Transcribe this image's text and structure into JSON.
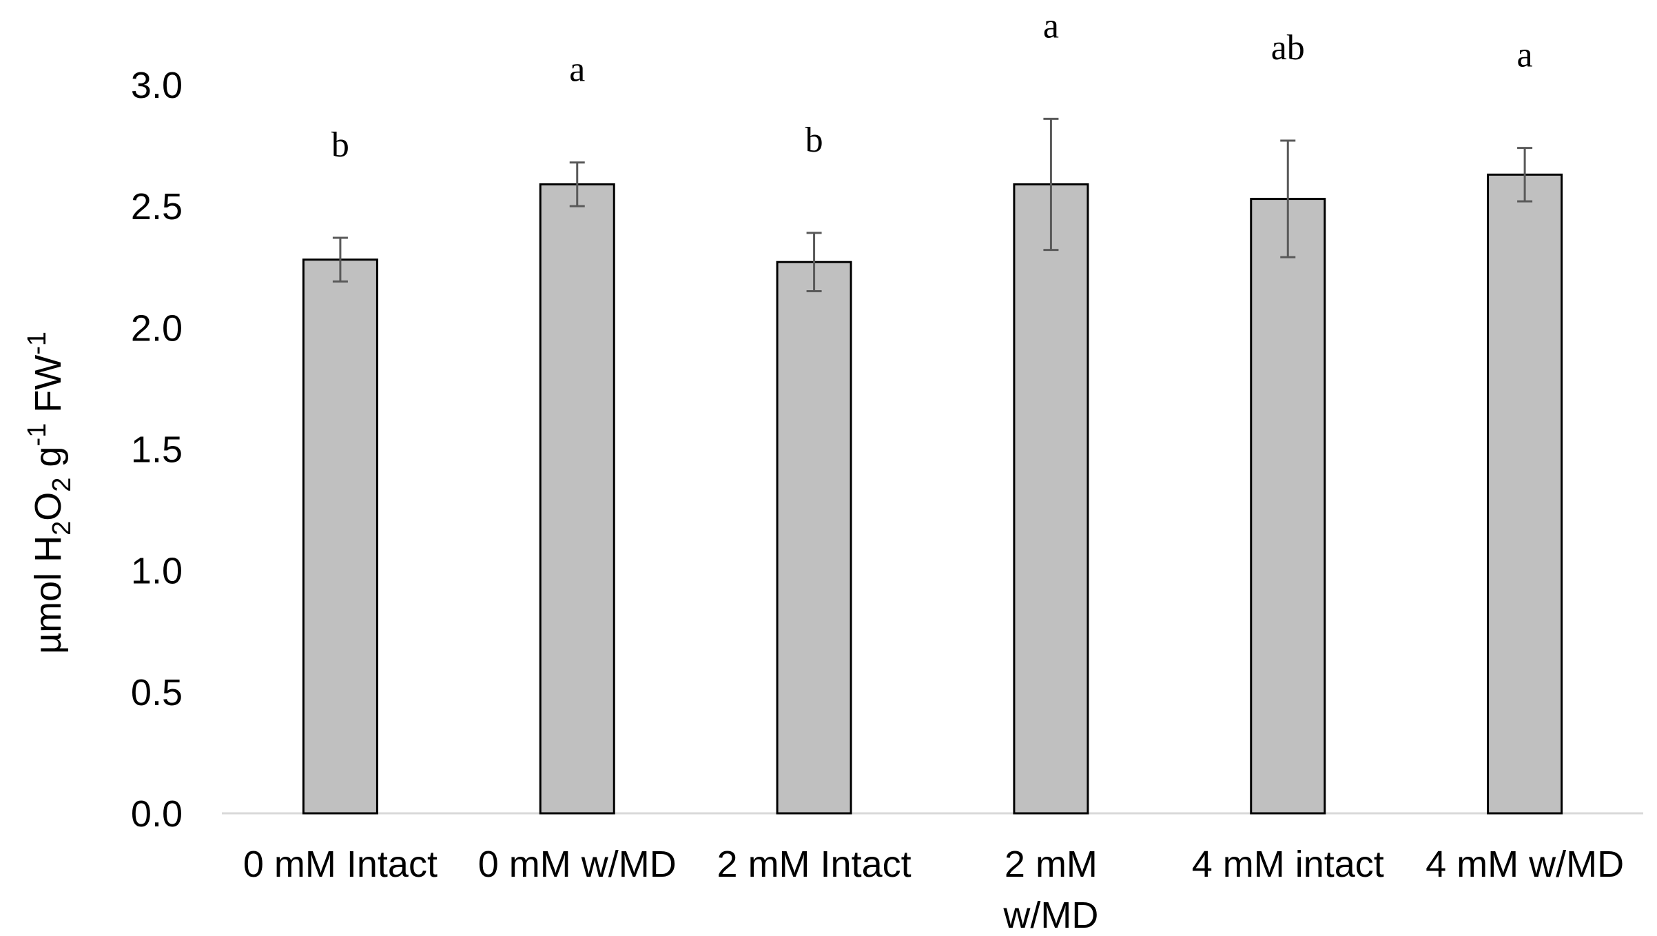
{
  "chart_data": {
    "type": "bar",
    "title": "",
    "xlabel": "",
    "ylabel": {
      "prefix": "µmol H",
      "sub1": "2",
      "mid": "O",
      "sub2": "2",
      "mid2": " g",
      "sup1": "-1",
      "mid3": " FW",
      "sup2": "-1"
    },
    "ylim": [
      0,
      3.0
    ],
    "yticks": [
      "0.0",
      "0.5",
      "1.0",
      "1.5",
      "2.0",
      "2.5",
      "3.0"
    ],
    "categories": [
      [
        "0 mM Intact"
      ],
      [
        "0 mM w/MD"
      ],
      [
        "2 mM Intact"
      ],
      [
        "2 mM",
        "w/MD"
      ],
      [
        "4 mM intact"
      ],
      [
        "4 mM w/MD"
      ]
    ],
    "values": [
      2.28,
      2.59,
      2.27,
      2.59,
      2.53,
      2.63
    ],
    "errors": [
      0.09,
      0.09,
      0.12,
      0.27,
      0.24,
      0.11
    ],
    "letters": [
      "b",
      "a",
      "b",
      "a",
      "ab",
      "a"
    ],
    "colors": {
      "bar": "#c0c0c0",
      "bar_edge": "#000000",
      "error": "#595959",
      "axis": "#d9d9d9"
    }
  }
}
